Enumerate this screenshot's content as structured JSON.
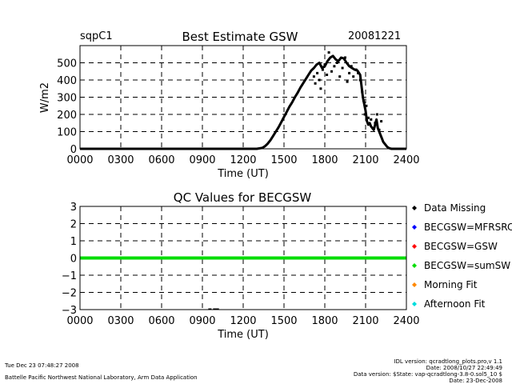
{
  "station": "sqpC1",
  "date_label": "20081221",
  "footer": {
    "timestamp": "Tue Dec 23 07:48:27 2008",
    "lab": "Battelle Pacific Northwest National Laboratory, Arm Data Application",
    "idl_version": "IDL version: qcradtlong_plots.pro,v 1.1",
    "idl_date": "Date: 2008/10/27 22:49:49",
    "data_version": "Data version: $State: vap-qcradtlong-3.8-0.sol5_10 $",
    "plot_date": "Date: 23-Dec-2008"
  },
  "chart_data": [
    {
      "type": "scatter",
      "title": "Best Estimate GSW",
      "xlabel": "Time (UT)",
      "ylabel": "W/m2",
      "xlim": [
        0,
        2400
      ],
      "ylim": [
        0,
        600
      ],
      "x_tick_labels": [
        "0000",
        "0300",
        "0600",
        "0900",
        "1200",
        "1500",
        "1800",
        "2100",
        "2400"
      ],
      "y_tick_labels": [
        "0",
        "100",
        "200",
        "300",
        "400",
        "500"
      ],
      "grid": "dashed",
      "series": [
        {
          "color": "#000000",
          "x": [
            0,
            200,
            400,
            600,
            800,
            1000,
            1200,
            1300,
            1340,
            1360,
            1380,
            1400,
            1420,
            1440,
            1460,
            1480,
            1500,
            1520,
            1540,
            1560,
            1580,
            1600,
            1620,
            1640,
            1660,
            1680,
            1700,
            1720,
            1740,
            1760,
            1780,
            1800,
            1820,
            1840,
            1860,
            1880,
            1900,
            1920,
            1940,
            1960,
            1980,
            2000,
            2020,
            2040,
            2060,
            2080,
            2100,
            2110,
            2120,
            2130,
            2140,
            2150,
            2160,
            2170,
            2180,
            2190,
            2200,
            2210,
            2220,
            2230,
            2240,
            2250,
            2260,
            2270,
            2280,
            2290,
            2300,
            2320,
            2340,
            2360,
            2380,
            2400
          ],
          "y": [
            0,
            0,
            0,
            0,
            0,
            0,
            0,
            0,
            5,
            15,
            30,
            50,
            75,
            100,
            125,
            155,
            185,
            215,
            245,
            270,
            300,
            325,
            355,
            380,
            405,
            430,
            455,
            470,
            490,
            500,
            470,
            480,
            510,
            530,
            540,
            520,
            510,
            530,
            525,
            500,
            480,
            470,
            460,
            455,
            430,
            300,
            220,
            160,
            140,
            150,
            130,
            120,
            110,
            140,
            170,
            120,
            100,
            80,
            60,
            40,
            30,
            20,
            10,
            5,
            2,
            0,
            0,
            0,
            0,
            0,
            0,
            0
          ]
        },
        {
          "color": "#000000",
          "x": [
            1720,
            1730,
            1745,
            1760,
            1770,
            1785,
            1800,
            1815,
            1830,
            1850,
            1870,
            1890,
            1910,
            1930,
            1950,
            1965,
            1980,
            1995,
            2010,
            2030,
            2045,
            2060,
            2075,
            2085,
            2095,
            2105,
            2120,
            2140,
            2155,
            2170,
            2185,
            2200,
            2215
          ],
          "y": [
            420,
            380,
            440,
            400,
            350,
            460,
            490,
            430,
            560,
            450,
            480,
            500,
            420,
            470,
            530,
            390,
            440,
            480,
            420,
            460,
            440,
            400,
            330,
            280,
            200,
            250,
            180,
            170,
            120,
            150,
            200,
            110,
            160
          ]
        }
      ]
    },
    {
      "type": "scatter",
      "title": "QC Values for BECGSW",
      "xlabel": "Time (UT)",
      "xlim": [
        0,
        2400
      ],
      "ylim": [
        -3,
        3
      ],
      "x_tick_labels": [
        "0000",
        "0300",
        "0600",
        "0900",
        "1200",
        "1500",
        "1800",
        "2100",
        "2400"
      ],
      "y_tick_labels": [
        "3",
        "2",
        "1",
        "0",
        "−1",
        "−2",
        "−3"
      ],
      "grid": "dashed",
      "series": [
        {
          "name": "BECGSW=sumSW",
          "color": "#00dd00",
          "x": [
            0,
            2400
          ],
          "y": [
            0,
            0
          ]
        },
        {
          "name": "Data Missing",
          "color": "#000000",
          "x": [
            955,
            990,
            1010
          ],
          "y": [
            -3,
            -3,
            -3
          ]
        }
      ],
      "legend": {
        "placement": "right",
        "entries": [
          {
            "label": "Data Missing",
            "color": "#000000"
          },
          {
            "label": "BECGSW=MFRSRC",
            "color": "#0000ff"
          },
          {
            "label": "BECGSW=GSW",
            "color": "#ff0000"
          },
          {
            "label": "BECGSW=sumSW",
            "color": "#00dd00"
          },
          {
            "label": "Morning Fit",
            "color": "#ff8800"
          },
          {
            "label": "Afternoon Fit",
            "color": "#00dddd"
          }
        ]
      }
    }
  ]
}
